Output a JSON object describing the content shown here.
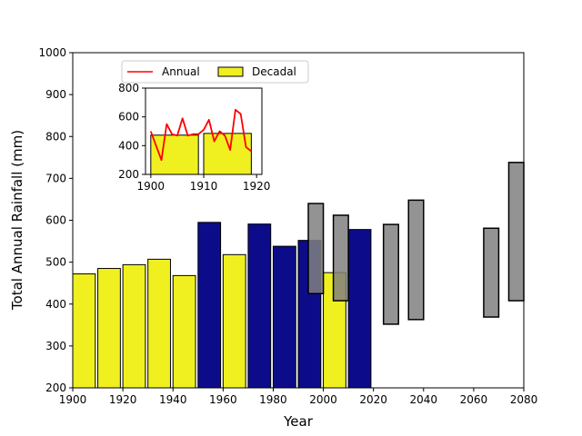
{
  "chart_data": [
    {
      "type": "bar",
      "title": "",
      "xlabel": "Year",
      "ylabel": "Total Annual Rainfall (mm)",
      "xlim": [
        1900,
        2080
      ],
      "ylim": [
        200,
        1000
      ],
      "xticks": [
        "1900",
        "1920",
        "1940",
        "1960",
        "1980",
        "2000",
        "2020",
        "2040",
        "2060",
        "2080"
      ],
      "yticks": [
        "200",
        "300",
        "400",
        "500",
        "600",
        "700",
        "800",
        "900",
        "1000"
      ],
      "grid": false,
      "series": [
        {
          "name": "Decadal",
          "color": "#f0f020",
          "bars": [
            {
              "x0": 1900,
              "x1": 1909,
              "value": 472
            },
            {
              "x0": 1910,
              "x1": 1919,
              "value": 485
            },
            {
              "x0": 1920,
              "x1": 1929,
              "value": 494
            },
            {
              "x0": 1930,
              "x1": 1939,
              "value": 507
            },
            {
              "x0": 1940,
              "x1": 1949,
              "value": 468
            },
            {
              "x0": 1960,
              "x1": 1969,
              "value": 518
            },
            {
              "x0": 2000,
              "x1": 2009,
              "value": 475
            }
          ]
        },
        {
          "color": "#0c0c8a",
          "bars": [
            {
              "x0": 1950,
              "x1": 1959,
              "value": 595
            },
            {
              "x0": 1970,
              "x1": 1979,
              "value": 591
            },
            {
              "x0": 1980,
              "x1": 1989,
              "value": 538
            },
            {
              "x0": 1990,
              "x1": 1999,
              "value": 552
            },
            {
              "x0": 2010,
              "x1": 2019,
              "value": 578
            }
          ]
        },
        {
          "color": "#808080",
          "ranges": [
            {
              "x0": 1994,
              "x1": 2000,
              "low": 425,
              "high": 640
            },
            {
              "x0": 2004,
              "x1": 2010,
              "low": 408,
              "high": 612
            },
            {
              "x0": 2024,
              "x1": 2030,
              "low": 352,
              "high": 590
            },
            {
              "x0": 2034,
              "x1": 2040,
              "low": 363,
              "high": 648
            },
            {
              "x0": 2064,
              "x1": 2070,
              "low": 369,
              "high": 581
            },
            {
              "x0": 2074,
              "x1": 2080,
              "low": 408,
              "high": 738
            }
          ]
        }
      ],
      "legend": {
        "placement": "top-left",
        "entries": [
          {
            "label": "Annual",
            "kind": "line",
            "color": "#ff0000"
          },
          {
            "label": "Decadal",
            "kind": "patch",
            "color": "#f0f020"
          }
        ]
      }
    },
    {
      "type": "bar",
      "title": "",
      "xlabel": "",
      "ylabel": "",
      "xlim": [
        1899,
        1921
      ],
      "ylim": [
        200,
        800
      ],
      "xticks": [
        "1900",
        "1910",
        "1920"
      ],
      "yticks": [
        "200",
        "400",
        "600",
        "800"
      ],
      "grid": false,
      "series": [
        {
          "name": "Decadal",
          "color": "#f0f020",
          "bars": [
            {
              "x0": 1900,
              "x1": 1909,
              "value": 473
            },
            {
              "x0": 1910,
              "x1": 1919,
              "value": 485
            }
          ]
        },
        {
          "name": "Annual",
          "color": "#ff0000",
          "x": [
            1900,
            1901,
            1902,
            1903,
            1904,
            1905,
            1906,
            1907,
            1908,
            1909,
            1910,
            1911,
            1912,
            1913,
            1914,
            1915,
            1916,
            1917,
            1918,
            1919
          ],
          "y": [
            500,
            400,
            300,
            550,
            480,
            470,
            590,
            470,
            480,
            480,
            510,
            580,
            430,
            500,
            470,
            370,
            650,
            620,
            390,
            360
          ]
        }
      ]
    }
  ]
}
